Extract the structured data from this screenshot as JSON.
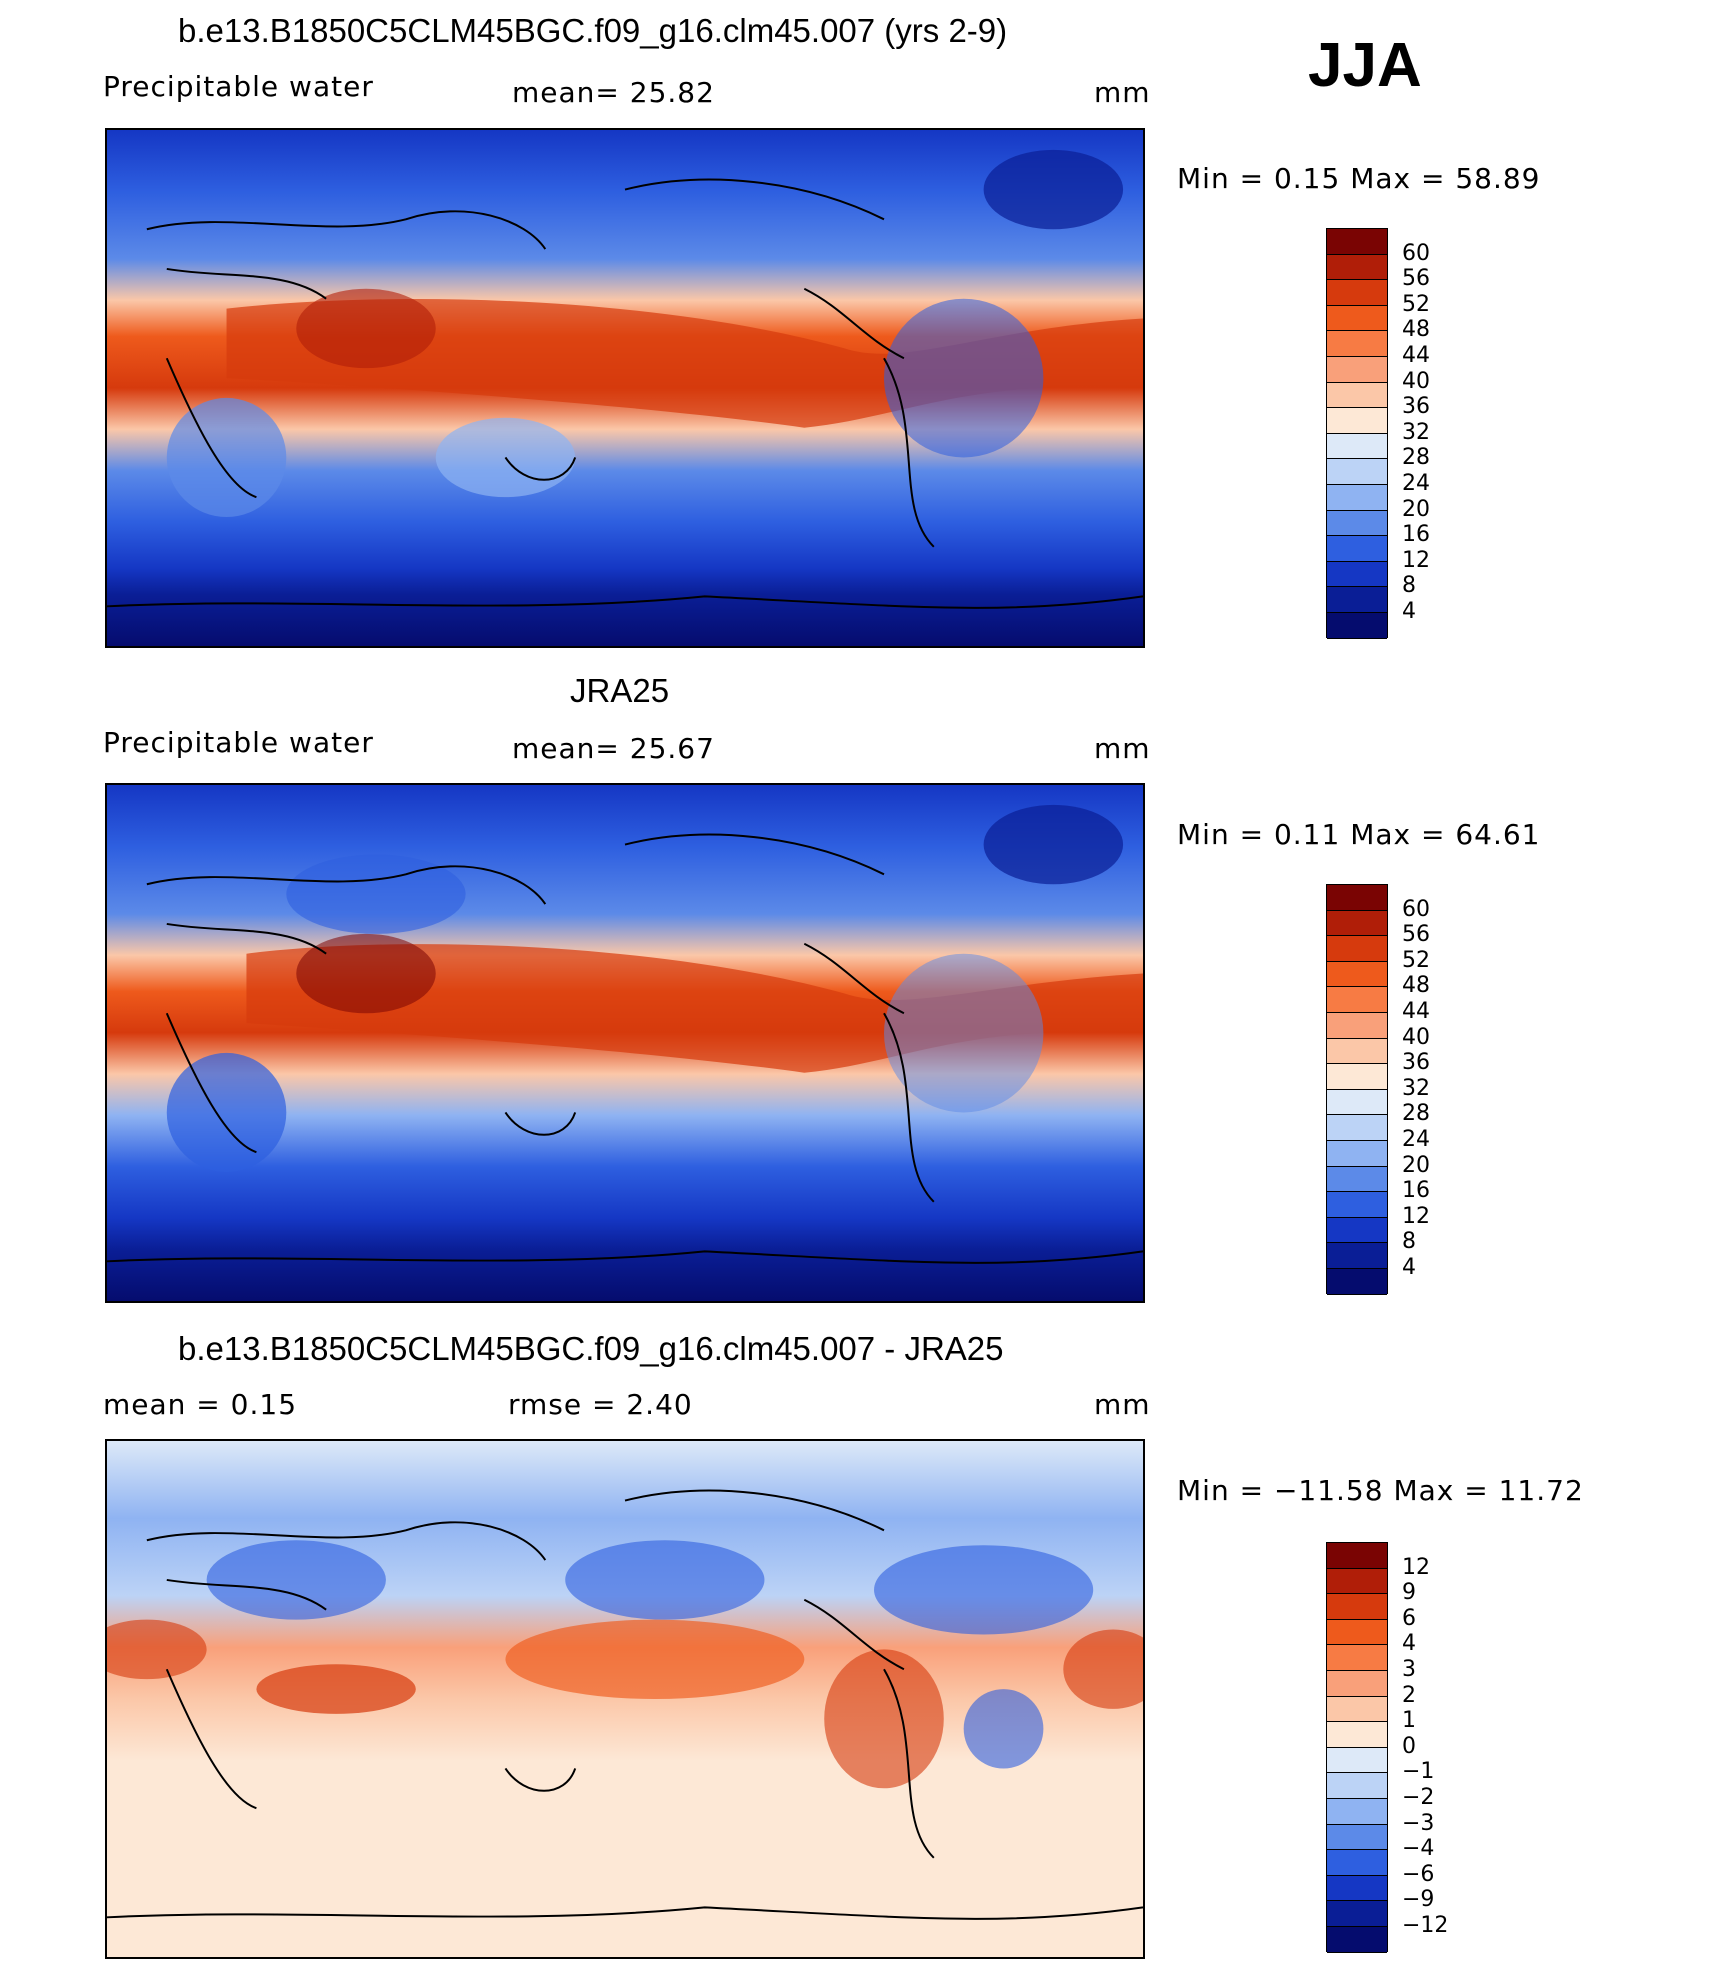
{
  "season": "JJA",
  "panels": [
    {
      "title": "b.e13.B1850C5CLM45BGC.f09_g16.clm45.007 (yrs 2-9)",
      "left_label": "Precipitable  water",
      "mid_label": "mean=   25.82",
      "units": "mm",
      "minmax": "Min  =     0.15  Max  =    58.89",
      "colorbar": {
        "labels": [
          "60",
          "56",
          "52",
          "48",
          "44",
          "40",
          "36",
          "32",
          "28",
          "24",
          "20",
          "16",
          "12",
          "8",
          "4"
        ],
        "colors": [
          "#7a0403",
          "#b01e08",
          "#d63a0d",
          "#ee5a1c",
          "#f77b44",
          "#f9a07a",
          "#fbc7a8",
          "#fde8d6",
          "#dde9f8",
          "#bcd3f6",
          "#8fb3f2",
          "#5c8ae8",
          "#2e5fe0",
          "#1537c4",
          "#0a1e96",
          "#050c6e"
        ]
      }
    },
    {
      "title": "JRA25",
      "left_label": "Precipitable  water",
      "mid_label": "mean=   25.67",
      "units": "mm",
      "minmax": "Min  =     0.11  Max  =    64.61",
      "colorbar": {
        "labels": [
          "60",
          "56",
          "52",
          "48",
          "44",
          "40",
          "36",
          "32",
          "28",
          "24",
          "20",
          "16",
          "12",
          "8",
          "4"
        ],
        "colors": [
          "#7a0403",
          "#b01e08",
          "#d63a0d",
          "#ee5a1c",
          "#f77b44",
          "#f9a07a",
          "#fbc7a8",
          "#fde8d6",
          "#dde9f8",
          "#bcd3f6",
          "#8fb3f2",
          "#5c8ae8",
          "#2e5fe0",
          "#1537c4",
          "#0a1e96",
          "#050c6e"
        ]
      }
    },
    {
      "title": "b.e13.B1850C5CLM45BGC.f09_g16.clm45.007 - JRA25",
      "left_label": "mean  =     0.15",
      "mid_label": "rmse  =     2.40",
      "units": "mm",
      "minmax": "Min  = −11.58  Max  =    11.72",
      "colorbar": {
        "labels": [
          "12",
          "9",
          "6",
          "4",
          "3",
          "2",
          "1",
          "0",
          "−1",
          "−2",
          "−3",
          "−4",
          "−6",
          "−9",
          "−12"
        ],
        "colors": [
          "#7a0403",
          "#b01e08",
          "#d63a0d",
          "#ee5a1c",
          "#f77b44",
          "#f9a07a",
          "#fbc7a8",
          "#fde8d6",
          "#dde9f8",
          "#bcd3f6",
          "#8fb3f2",
          "#5c8ae8",
          "#2e5fe0",
          "#1537c4",
          "#0a1e96",
          "#050c6e"
        ]
      }
    }
  ]
}
